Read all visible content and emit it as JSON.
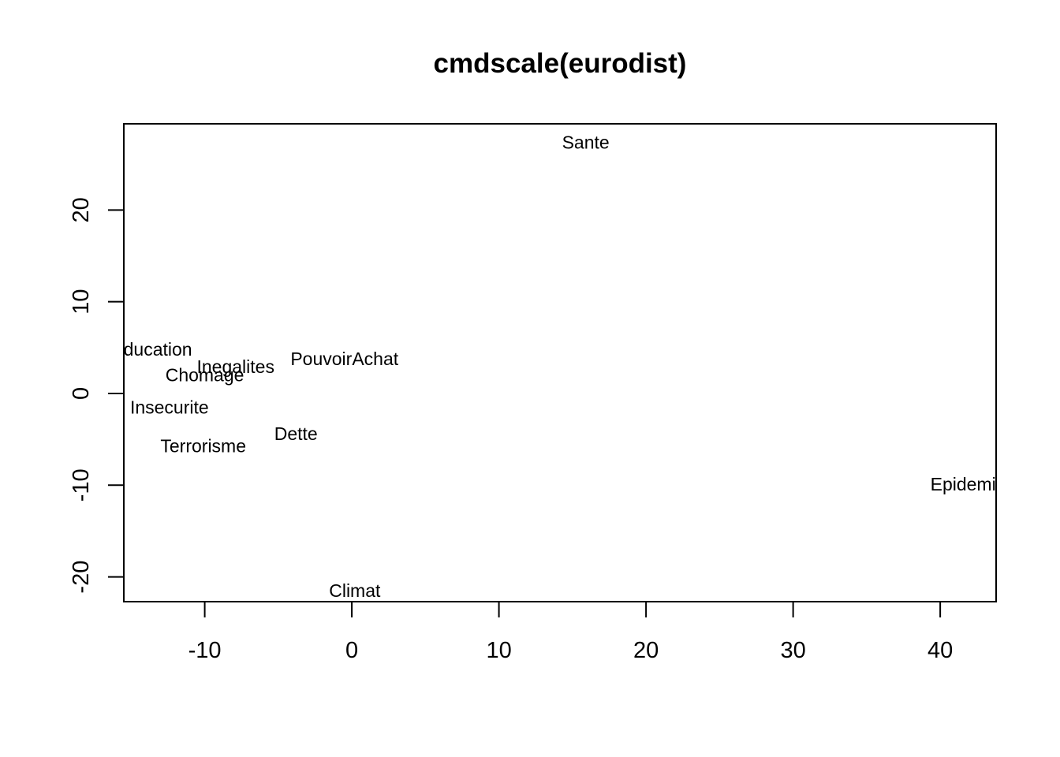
{
  "chart_data": {
    "type": "scatter",
    "title": "cmdscale(eurodist)",
    "xlabel": "",
    "ylabel": "",
    "xlim": [
      -15.5,
      43.8
    ],
    "ylim": [
      -22.7,
      29.4
    ],
    "xticks": [
      -10,
      0,
      10,
      20,
      30,
      40
    ],
    "yticks": [
      -20,
      -10,
      0,
      10,
      20
    ],
    "xtick_labels": [
      "-10",
      "0",
      "10",
      "20",
      "30",
      "40"
    ],
    "ytick_labels": [
      "-20",
      "-10",
      "0",
      "10",
      "20"
    ],
    "grid": false,
    "points": [
      {
        "label": "Sante",
        "x": 15.9,
        "y": 27.4
      },
      {
        "label": "Education",
        "x": -13.6,
        "y": 4.8
      },
      {
        "label": "Inegalites",
        "x": -7.9,
        "y": 2.9
      },
      {
        "label": "PouvoirAchat",
        "x": -0.5,
        "y": 3.8
      },
      {
        "label": "Chomage",
        "x": -10.0,
        "y": 2.0
      },
      {
        "label": "Insecurite",
        "x": -12.4,
        "y": -1.5
      },
      {
        "label": "Dette",
        "x": -3.8,
        "y": -4.4
      },
      {
        "label": "Terrorisme",
        "x": -10.1,
        "y": -5.7
      },
      {
        "label": "Epidemie",
        "x": 41.9,
        "y": -9.9
      },
      {
        "label": "Climat",
        "x": 0.2,
        "y": -21.5
      }
    ]
  }
}
